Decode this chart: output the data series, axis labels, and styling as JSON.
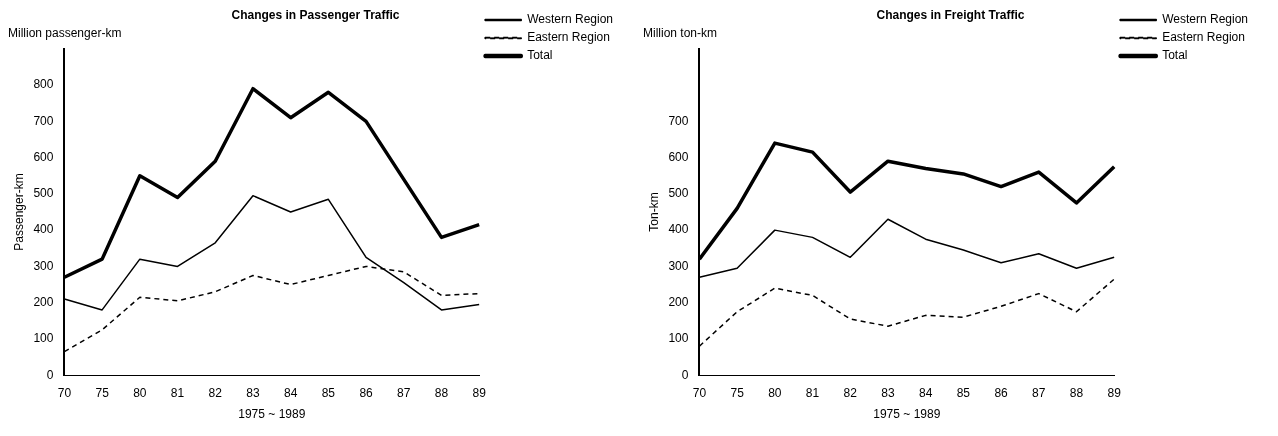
{
  "chart_data": [
    {
      "type": "line",
      "title": "Changes in Passenger Traffic",
      "subtitle": "Million passenger-km",
      "xlabel": "1975 ~ 1989",
      "ylabel": "Passenger-km",
      "categories": [
        "70",
        "75",
        "80",
        "81",
        "82",
        "83",
        "84",
        "85",
        "86",
        "87",
        "88",
        "89"
      ],
      "series": [
        {
          "name": "Western Region",
          "color": "#000000",
          "line_style": "solid",
          "values": [
            210,
            180,
            320,
            300,
            365,
            495,
            450,
            485,
            325,
            255,
            180,
            195
          ]
        },
        {
          "name": "Eastern Region",
          "color": "#000000",
          "line_style": "dashed",
          "values": [
            65,
            125,
            215,
            205,
            230,
            275,
            250,
            275,
            300,
            285,
            220,
            225
          ]
        },
        {
          "name": "Total",
          "color": "#000000",
          "line_style": "solid",
          "values": [
            270,
            320,
            550,
            490,
            590,
            790,
            710,
            780,
            700,
            540,
            380,
            415
          ]
        }
      ],
      "ylim": [
        0,
        900
      ],
      "yticks": [
        0,
        100,
        200,
        300,
        400,
        500,
        600,
        700,
        800
      ],
      "grid": false,
      "legend": "right",
      "marker": "none"
    },
    {
      "type": "line",
      "title": "Changes in Freight Traffic",
      "subtitle": "Million ton-km",
      "xlabel": "1975 ~ 1989",
      "ylabel": "Ton-km",
      "categories": [
        "70",
        "75",
        "80",
        "81",
        "82",
        "83",
        "84",
        "85",
        "86",
        "87",
        "88",
        "89"
      ],
      "series": [
        {
          "name": "Western Region",
          "color": "#000000",
          "line_style": "solid",
          "values": [
            270,
            295,
            400,
            380,
            325,
            430,
            375,
            345,
            310,
            335,
            295,
            325
          ]
        },
        {
          "name": "Eastern Region",
          "color": "#000000",
          "line_style": "dashed",
          "values": [
            80,
            175,
            240,
            220,
            155,
            135,
            165,
            160,
            190,
            225,
            175,
            265
          ]
        },
        {
          "name": "Total",
          "color": "#000000",
          "line_style": "solid",
          "values": [
            320,
            460,
            640,
            615,
            505,
            590,
            570,
            555,
            520,
            560,
            475,
            575
          ]
        }
      ],
      "ylim": [
        0,
        900
      ],
      "yticks": [
        0,
        100,
        200,
        300,
        400,
        500,
        600,
        700
      ],
      "grid": false,
      "legend": "right",
      "marker": "none"
    }
  ]
}
